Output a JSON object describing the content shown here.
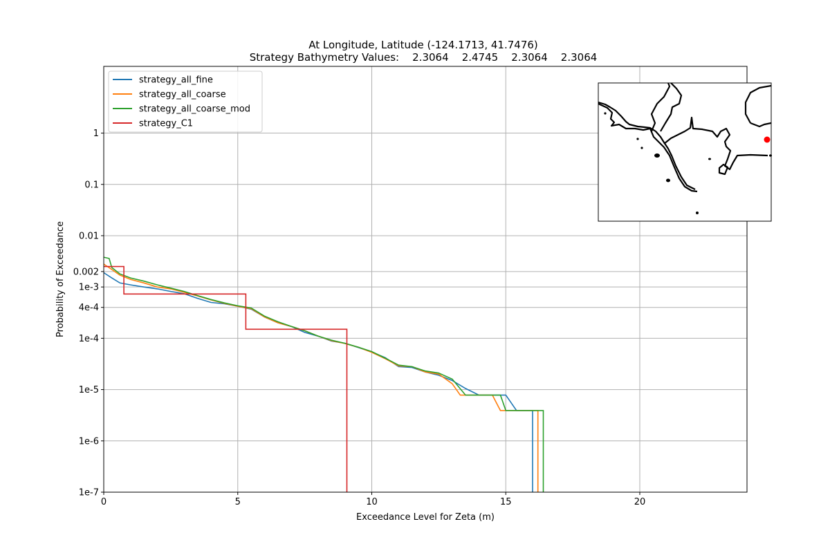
{
  "chart_data": {
    "type": "line",
    "title": "At Longitude, Latitude (-124.1713,  41.7476)",
    "subtitle": "Strategy Bathymetry Values:    2.3064    2.4745    2.3064    2.3064",
    "xlabel": "Exceedance Level for Zeta (m)",
    "ylabel": "Probability of Exceedance",
    "xlim": [
      0,
      24
    ],
    "ylim": [
      1e-07,
      20
    ],
    "yscale": "log",
    "grid": true,
    "legend_position": "top-left",
    "x_ticks": [
      0,
      5,
      10,
      15,
      20
    ],
    "x_tick_labels": [
      "0",
      "5",
      "10",
      "15",
      "20"
    ],
    "y_ticks": [
      1e-07,
      1e-06,
      1e-05,
      0.0001,
      0.0004,
      0.001,
      0.002,
      0.01,
      0.1,
      1
    ],
    "y_tick_labels": [
      "1e-7",
      "1e-6",
      "1e-5",
      "1e-4",
      "4e-4",
      "1e-3",
      "0.002",
      "0.01",
      "0.1",
      "1"
    ],
    "series": [
      {
        "name": "strategy_all_fine",
        "color": "#1f77b4",
        "points": [
          [
            0,
            0.0019
          ],
          [
            0.3,
            0.0015
          ],
          [
            0.6,
            0.0012
          ],
          [
            1.0,
            0.0011
          ],
          [
            1.5,
            0.001
          ],
          [
            2.0,
            0.00092
          ],
          [
            2.5,
            0.00082
          ],
          [
            3.0,
            0.00074
          ],
          [
            3.5,
            0.0006
          ],
          [
            4.0,
            0.0005
          ],
          [
            4.5,
            0.00047
          ],
          [
            5.0,
            0.00042
          ],
          [
            5.5,
            0.00037
          ],
          [
            6.0,
            0.00026
          ],
          [
            6.5,
            0.0002
          ],
          [
            7.0,
            0.00017
          ],
          [
            7.5,
            0.00013
          ],
          [
            8.0,
            0.00011
          ],
          [
            8.5,
            8.8e-05
          ],
          [
            9.0,
            8e-05
          ],
          [
            9.5,
            6.6e-05
          ],
          [
            10.0,
            5.4e-05
          ],
          [
            10.5,
            4.2e-05
          ],
          [
            11.0,
            2.8e-05
          ],
          [
            11.5,
            2.7e-05
          ],
          [
            12.0,
            2.2e-05
          ],
          [
            12.5,
            1.9e-05
          ],
          [
            13.0,
            1.5e-05
          ],
          [
            13.5,
            1.05e-05
          ],
          [
            14.0,
            7.8e-06
          ],
          [
            15.0,
            7.8e-06
          ],
          [
            15.4,
            3.9e-06
          ],
          [
            16.0,
            3.9e-06
          ],
          [
            16.0,
            1e-07
          ]
        ]
      },
      {
        "name": "strategy_all_coarse",
        "color": "#ff7f0e",
        "points": [
          [
            0,
            0.0028
          ],
          [
            0.3,
            0.0022
          ],
          [
            0.6,
            0.0017
          ],
          [
            1.0,
            0.0014
          ],
          [
            1.5,
            0.0012
          ],
          [
            2.0,
            0.001
          ],
          [
            2.5,
            0.00092
          ],
          [
            3.0,
            0.00079
          ],
          [
            3.5,
            0.00067
          ],
          [
            4.0,
            0.00056
          ],
          [
            4.5,
            0.00048
          ],
          [
            5.0,
            0.00042
          ],
          [
            5.5,
            0.00038
          ],
          [
            6.0,
            0.00026
          ],
          [
            6.5,
            0.0002
          ],
          [
            7.0,
            0.00017
          ],
          [
            7.5,
            0.00014
          ],
          [
            8.0,
            0.00011
          ],
          [
            8.5,
            9e-05
          ],
          [
            9.0,
            7.9e-05
          ],
          [
            9.5,
            6.7e-05
          ],
          [
            10.0,
            5.3e-05
          ],
          [
            10.5,
            4e-05
          ],
          [
            11.0,
            2.9e-05
          ],
          [
            11.5,
            2.8e-05
          ],
          [
            12.0,
            2.2e-05
          ],
          [
            12.5,
            2e-05
          ],
          [
            13.0,
            1.3e-05
          ],
          [
            13.3,
            7.8e-06
          ],
          [
            14.5,
            7.8e-06
          ],
          [
            14.8,
            3.9e-06
          ],
          [
            16.2,
            3.9e-06
          ],
          [
            16.2,
            1e-07
          ]
        ]
      },
      {
        "name": "strategy_all_coarse_mod",
        "color": "#2ca02c",
        "points": [
          [
            0,
            0.0038
          ],
          [
            0.2,
            0.0036
          ],
          [
            0.3,
            0.0024
          ],
          [
            0.6,
            0.0018
          ],
          [
            1.0,
            0.0015
          ],
          [
            1.5,
            0.0013
          ],
          [
            2.0,
            0.0011
          ],
          [
            2.5,
            0.00095
          ],
          [
            3.0,
            0.00082
          ],
          [
            3.5,
            0.00068
          ],
          [
            4.0,
            0.00057
          ],
          [
            4.5,
            0.00049
          ],
          [
            5.0,
            0.00043
          ],
          [
            5.5,
            0.00039
          ],
          [
            6.0,
            0.00027
          ],
          [
            6.5,
            0.00021
          ],
          [
            7.0,
            0.00017
          ],
          [
            7.5,
            0.00014
          ],
          [
            8.0,
            0.00011
          ],
          [
            8.5,
            9.2e-05
          ],
          [
            9.0,
            8e-05
          ],
          [
            9.5,
            6.7e-05
          ],
          [
            10.0,
            5.5e-05
          ],
          [
            10.5,
            4.1e-05
          ],
          [
            11.0,
            3e-05
          ],
          [
            11.5,
            2.8e-05
          ],
          [
            12.0,
            2.3e-05
          ],
          [
            12.5,
            2.1e-05
          ],
          [
            13.0,
            1.6e-05
          ],
          [
            13.5,
            7.8e-06
          ],
          [
            14.8,
            7.8e-06
          ],
          [
            15.0,
            3.9e-06
          ],
          [
            16.4,
            3.9e-06
          ],
          [
            16.4,
            1e-07
          ]
        ]
      },
      {
        "name": "strategy_C1",
        "color": "#d62728",
        "points": [
          [
            0,
            0.0025
          ],
          [
            0.75,
            0.0025
          ],
          [
            0.75,
            0.00073
          ],
          [
            5.3,
            0.00073
          ],
          [
            5.3,
            0.00015
          ],
          [
            9.07,
            0.00015
          ],
          [
            9.07,
            1e-07
          ]
        ]
      }
    ]
  },
  "inset_map": {
    "marker_color": "#ff0000",
    "coast_color": "#000000"
  }
}
